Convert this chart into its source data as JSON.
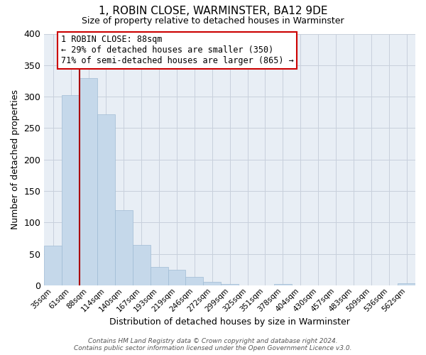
{
  "title": "1, ROBIN CLOSE, WARMINSTER, BA12 9DE",
  "subtitle": "Size of property relative to detached houses in Warminster",
  "xlabel": "Distribution of detached houses by size in Warminster",
  "ylabel": "Number of detached properties",
  "bar_labels": [
    "35sqm",
    "61sqm",
    "88sqm",
    "114sqm",
    "140sqm",
    "167sqm",
    "193sqm",
    "219sqm",
    "246sqm",
    "272sqm",
    "299sqm",
    "325sqm",
    "351sqm",
    "378sqm",
    "404sqm",
    "430sqm",
    "457sqm",
    "483sqm",
    "509sqm",
    "536sqm",
    "562sqm"
  ],
  "bar_values": [
    63,
    302,
    330,
    272,
    120,
    64,
    29,
    25,
    13,
    5,
    2,
    0,
    0,
    2,
    0,
    0,
    0,
    0,
    0,
    0,
    3
  ],
  "highlight_index": 2,
  "bar_color": "#c5d8ea",
  "bar_edge_color": "#a0bcd4",
  "vline_color": "#aa0000",
  "annotation_text": "1 ROBIN CLOSE: 88sqm\n← 29% of detached houses are smaller (350)\n71% of semi-detached houses are larger (865) →",
  "annotation_box_color": "#ffffff",
  "annotation_box_edge": "#cc0000",
  "ylim": [
    0,
    400
  ],
  "yticks": [
    0,
    50,
    100,
    150,
    200,
    250,
    300,
    350,
    400
  ],
  "footnote": "Contains HM Land Registry data © Crown copyright and database right 2024.\nContains public sector information licensed under the Open Government Licence v3.0.",
  "background_color": "#ffffff",
  "plot_bg_color": "#e8eef5",
  "grid_color": "#c8d0dc"
}
